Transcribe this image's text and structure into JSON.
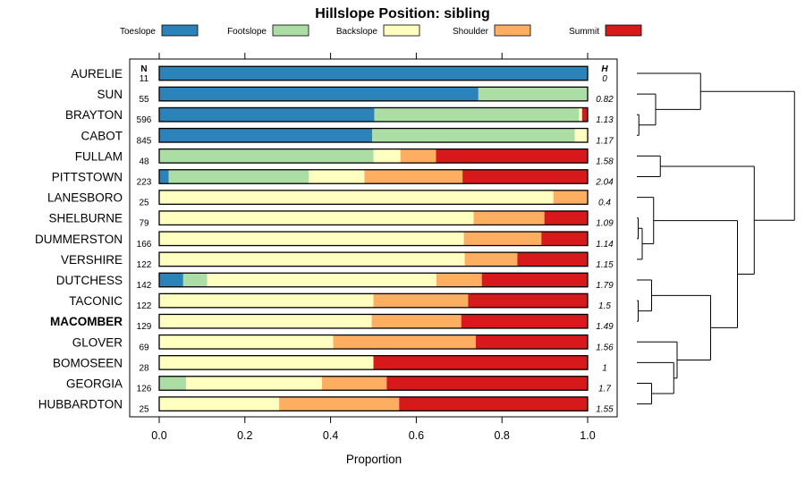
{
  "chart_data": {
    "type": "bar",
    "orientation": "horizontal-stacked",
    "title": "Hillslope Position: sibling",
    "xlabel": "Proportion",
    "ylabel": "",
    "xlim": [
      0,
      1
    ],
    "xticks": [
      0,
      0.2,
      0.4,
      0.6,
      0.8,
      1
    ],
    "xtick_labels": [
      "0.0",
      "0.2",
      "0.4",
      "0.6",
      "0.8",
      "1.0"
    ],
    "legend_position": "top",
    "series": [
      {
        "name": "Toeslope",
        "color": "#2b83ba"
      },
      {
        "name": "Footslope",
        "color": "#abdda4"
      },
      {
        "name": "Backslope",
        "color": "#ffffbf"
      },
      {
        "name": "Shoulder",
        "color": "#fdae61"
      },
      {
        "name": "Summit",
        "color": "#d7191c"
      }
    ],
    "n_header": "N",
    "h_header": "H",
    "highlight": "MACOMBER",
    "rows": [
      {
        "name": "AURELIE",
        "n": "11",
        "h": "0",
        "values": [
          1.0,
          0,
          0,
          0,
          0
        ]
      },
      {
        "name": "SUN",
        "n": "55",
        "h": "0.82",
        "values": [
          0.745,
          0.255,
          0,
          0,
          0
        ]
      },
      {
        "name": "BRAYTON",
        "n": "596",
        "h": "1.13",
        "values": [
          0.502,
          0.478,
          0.007,
          0,
          0.013
        ]
      },
      {
        "name": "CABOT",
        "n": "845",
        "h": "1.17",
        "values": [
          0.497,
          0.473,
          0.03,
          0,
          0
        ]
      },
      {
        "name": "FULLAM",
        "n": "48",
        "h": "1.58",
        "values": [
          0,
          0.5,
          0.063,
          0.083,
          0.354
        ]
      },
      {
        "name": "PITTSTOWN",
        "n": "223",
        "h": "2.04",
        "values": [
          0.022,
          0.327,
          0.13,
          0.229,
          0.292
        ]
      },
      {
        "name": "LANESBORO",
        "n": "25",
        "h": "0.4",
        "values": [
          0,
          0,
          0.92,
          0.08,
          0
        ]
      },
      {
        "name": "SHELBURNE",
        "n": "79",
        "h": "1.09",
        "values": [
          0,
          0,
          0.734,
          0.165,
          0.101
        ]
      },
      {
        "name": "DUMMERSTON",
        "n": "166",
        "h": "1.14",
        "values": [
          0,
          0,
          0.711,
          0.181,
          0.108
        ]
      },
      {
        "name": "VERSHIRE",
        "n": "122",
        "h": "1.15",
        "values": [
          0,
          0,
          0.713,
          0.123,
          0.164
        ]
      },
      {
        "name": "DUTCHESS",
        "n": "142",
        "h": "1.79",
        "values": [
          0.056,
          0.056,
          0.535,
          0.106,
          0.247
        ]
      },
      {
        "name": "TACONIC",
        "n": "122",
        "h": "1.5",
        "values": [
          0,
          0,
          0.5,
          0.221,
          0.279
        ]
      },
      {
        "name": "MACOMBER",
        "n": "129",
        "h": "1.49",
        "values": [
          0,
          0,
          0.496,
          0.209,
          0.295
        ]
      },
      {
        "name": "GLOVER",
        "n": "69",
        "h": "1.56",
        "values": [
          0,
          0,
          0.406,
          0.333,
          0.261
        ]
      },
      {
        "name": "BOMOSEEN",
        "n": "28",
        "h": "1",
        "values": [
          0,
          0,
          0.5,
          0,
          0.5
        ]
      },
      {
        "name": "GEORGIA",
        "n": "126",
        "h": "1.7",
        "values": [
          0,
          0.063,
          0.317,
          0.151,
          0.469
        ]
      },
      {
        "name": "HUBBARDTON",
        "n": "25",
        "h": "1.55",
        "values": [
          0,
          0,
          0.28,
          0.28,
          0.44
        ]
      }
    ],
    "dendrogram": {
      "leaf_order": [
        "AURELIE",
        "SUN",
        "BRAYTON",
        "CABOT",
        "FULLAM",
        "PITTSTOWN",
        "LANESBORO",
        "SHELBURNE",
        "DUMMERSTON",
        "VERSHIRE",
        "DUTCHESS",
        "TACONIC",
        "MACOMBER",
        "GLOVER",
        "BOMOSEEN",
        "GEORGIA",
        "HUBBARDTON"
      ],
      "merges": [
        {
          "a": "BRAYTON",
          "b": "CABOT",
          "height": 0.03
        },
        {
          "a": "SUN",
          "b": [
            "BRAYTON",
            "CABOT"
          ],
          "height": 0.28
        },
        {
          "a": "AURELIE",
          "b": [
            "SUN",
            "BRAYTON",
            "CABOT"
          ],
          "height": 0.95
        },
        {
          "a": "FULLAM",
          "b": "PITTSTOWN",
          "height": 0.35
        },
        {
          "a": "SHELBURNE",
          "b": "DUMMERSTON",
          "height": 0.02
        },
        {
          "a": [
            "SHELBURNE",
            "DUMMERSTON"
          ],
          "b": "VERSHIRE",
          "height": 0.08
        },
        {
          "a": [
            "SHELBURNE",
            "DUMMERSTON",
            "VERSHIRE"
          ],
          "b": "LANESBORO",
          "height": 0.25
        },
        {
          "a": "TACONIC",
          "b": "MACOMBER",
          "height": 0.02
        },
        {
          "a": "DUTCHESS",
          "b": [
            "TACONIC",
            "MACOMBER"
          ],
          "height": 0.22
        },
        {
          "a": "GEORGIA",
          "b": "HUBBARDTON",
          "height": 0.22
        },
        {
          "a": "BOMOSEEN",
          "b": [
            "GEORGIA",
            "HUBBARDTON"
          ],
          "height": 0.55
        },
        {
          "a": "GLOVER",
          "b": [
            "BOMOSEEN",
            "GEORGIA",
            "HUBBARDTON"
          ],
          "height": 0.6
        },
        {
          "a": [
            "DUTCHESS",
            "TACONIC",
            "MACOMBER"
          ],
          "b": [
            "GLOVER",
            "BOMOSEEN",
            "GEORGIA",
            "HUBBARDTON"
          ],
          "height": 1.1
        },
        {
          "a": [
            "LANESBORO",
            "SHELBURNE",
            "DUMMERSTON",
            "VERSHIRE"
          ],
          "b": [
            "DUTCHESS",
            "TACONIC",
            "MACOMBER",
            "GLOVER",
            "BOMOSEEN",
            "GEORGIA",
            "HUBBARDTON"
          ],
          "height": 1.5
        },
        {
          "a": [
            "FULLAM",
            "PITTSTOWN"
          ],
          "b": [
            "LANESBORO",
            "SHELBURNE",
            "DUMMERSTON",
            "VERSHIRE",
            "DUTCHESS",
            "TACONIC",
            "MACOMBER",
            "GLOVER",
            "BOMOSEEN",
            "GEORGIA",
            "HUBBARDTON"
          ],
          "height": 1.75
        },
        {
          "a": [
            "AURELIE",
            "SUN",
            "BRAYTON",
            "CABOT"
          ],
          "b": [
            "FULLAM",
            "PITTSTOWN",
            "LANESBORO",
            "SHELBURNE",
            "DUMMERSTON",
            "VERSHIRE",
            "DUTCHESS",
            "TACONIC",
            "MACOMBER",
            "GLOVER",
            "BOMOSEEN",
            "GEORGIA",
            "HUBBARDTON"
          ],
          "height": 2.35
        }
      ]
    }
  }
}
